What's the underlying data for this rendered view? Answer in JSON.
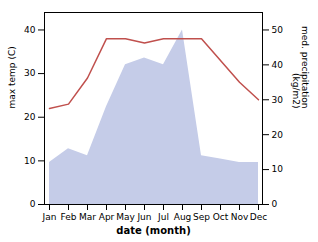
{
  "chart_data": {
    "type": "line",
    "categories": [
      "Jan",
      "Feb",
      "Mar",
      "Apr",
      "May",
      "Jun",
      "Jul",
      "Aug",
      "Sep",
      "Oct",
      "Nov",
      "Dec"
    ],
    "series": [
      {
        "type": "area",
        "axis": "y2",
        "color": "#c5cce8",
        "values": [
          12,
          16,
          14,
          28,
          40,
          42,
          40,
          50,
          14,
          13,
          12,
          12
        ]
      },
      {
        "type": "line",
        "color": "#c0504d",
        "values": [
          22,
          23,
          29,
          38,
          38,
          37,
          38,
          38,
          38,
          33,
          28,
          24
        ]
      }
    ],
    "xlabel": "date (month)",
    "ylabel": "max temp (C)",
    "y2label": "med. precipitation\n(kg/m2)",
    "ylim": [
      0,
      44
    ],
    "yticks": [
      0,
      10,
      20,
      30,
      40
    ],
    "y2lim": [
      0,
      55
    ],
    "y2ticks": [
      0,
      10,
      20,
      30,
      40,
      50
    ],
    "grid": false
  }
}
